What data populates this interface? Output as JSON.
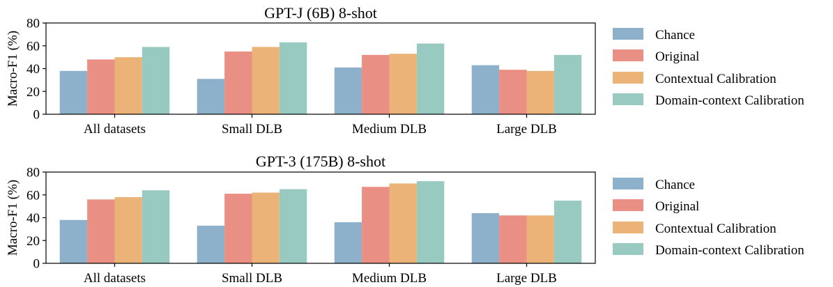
{
  "chart_data": [
    {
      "type": "bar",
      "title": "GPT-J (6B) 8-shot",
      "ylabel": "Macro-F1 (%)",
      "xlabel": "",
      "ylim": [
        0,
        80
      ],
      "yticks": [
        "0",
        "20",
        "40",
        "60",
        "80"
      ],
      "categories": [
        "All datasets",
        "Small DLB",
        "Medium DLB",
        "Large DLB"
      ],
      "legend_position": "right",
      "series": [
        {
          "name": "Chance",
          "color": "#8DB0CB",
          "values": [
            38,
            31,
            41,
            43
          ]
        },
        {
          "name": "Original",
          "color": "#E98F83",
          "values": [
            48,
            55,
            52,
            39
          ]
        },
        {
          "name": "Contextual Calibration",
          "color": "#EBB377",
          "values": [
            50,
            59,
            53,
            38
          ]
        },
        {
          "name": "Domain-context Calibration",
          "color": "#98CAC1",
          "values": [
            59,
            63,
            62,
            52
          ]
        }
      ]
    },
    {
      "type": "bar",
      "title": "GPT-3 (175B) 8-shot",
      "ylabel": "Macro-F1 (%)",
      "xlabel": "",
      "ylim": [
        0,
        80
      ],
      "yticks": [
        "0",
        "20",
        "40",
        "60",
        "80"
      ],
      "categories": [
        "All datasets",
        "Small DLB",
        "Medium DLB",
        "Large DLB"
      ],
      "legend_position": "right",
      "series": [
        {
          "name": "Chance",
          "color": "#8DB0CB",
          "values": [
            38,
            33,
            36,
            44
          ]
        },
        {
          "name": "Original",
          "color": "#E98F83",
          "values": [
            56,
            61,
            67,
            42
          ]
        },
        {
          "name": "Contextual Calibration",
          "color": "#EBB377",
          "values": [
            58,
            62,
            70,
            42
          ]
        },
        {
          "name": "Domain-context Calibration",
          "color": "#98CAC1",
          "values": [
            64,
            65,
            72,
            55
          ]
        }
      ]
    }
  ]
}
